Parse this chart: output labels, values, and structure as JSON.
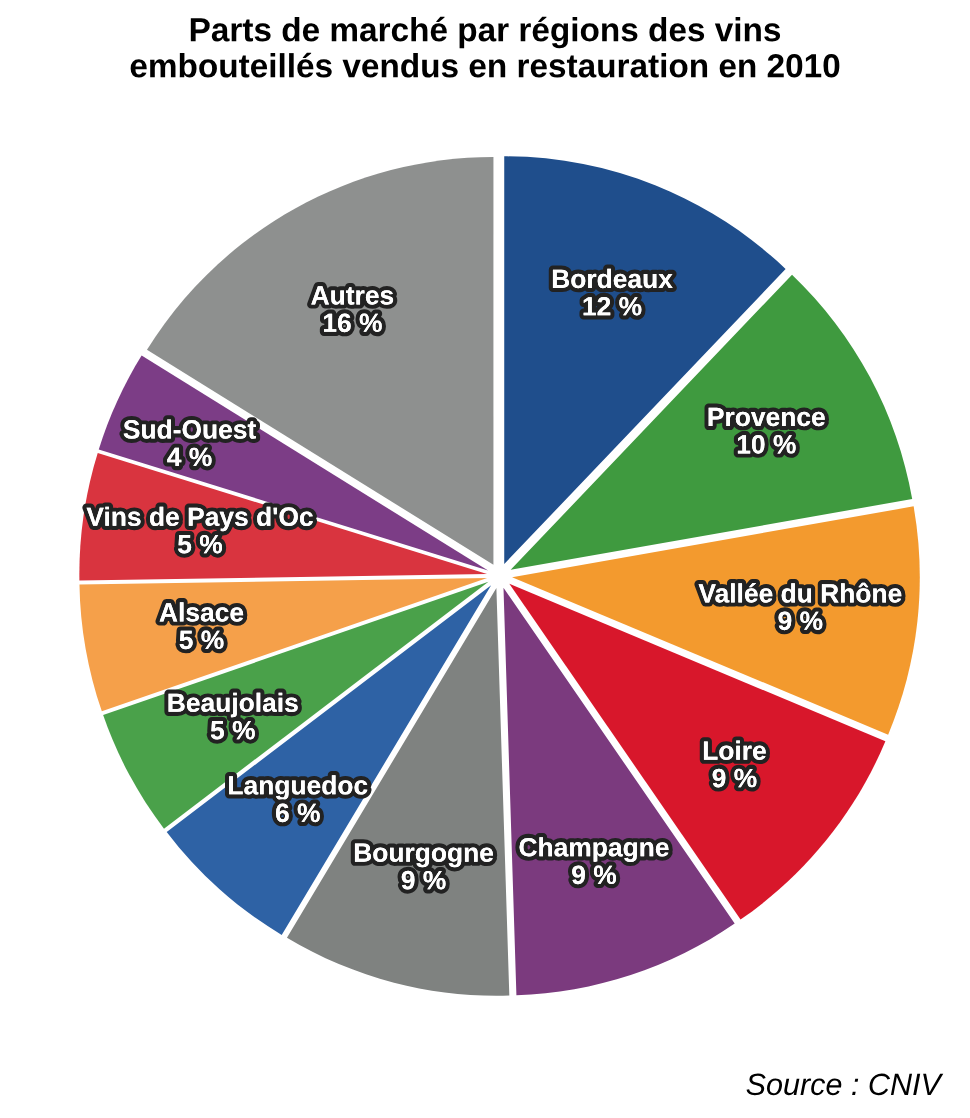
{
  "chart_data": {
    "type": "pie",
    "title": "Parts de marché par régions des vins\nembouteillés vendus en restauration en 2010",
    "categories": [
      "Bordeaux",
      "Provence",
      "Vallée du Rhône",
      "Loire",
      "Champagne",
      "Bourgogne",
      "Languedoc",
      "Beaujolais",
      "Alsace",
      "Vins de Pays d'Oc",
      "Sud-Ouest",
      "Autres"
    ],
    "values": [
      12,
      10,
      9,
      9,
      9,
      9,
      6,
      5,
      5,
      5,
      4,
      16
    ],
    "value_labels": [
      "12 %",
      "10 %",
      "9 %",
      "9 %",
      "9 %",
      "9 %",
      "6 %",
      "5 %",
      "5 %",
      "5 %",
      "4 %",
      "16 %"
    ],
    "colors": [
      "#1f4e8c",
      "#3f9a3f",
      "#f39a2e",
      "#d8172b",
      "#7b3a7e",
      "#7f8280",
      "#2e62a5",
      "#4aa14a",
      "#f5a04a",
      "#d9343f",
      "#7c3d86",
      "#8e908f"
    ],
    "annotations": [
      "Source : CNIV"
    ]
  }
}
